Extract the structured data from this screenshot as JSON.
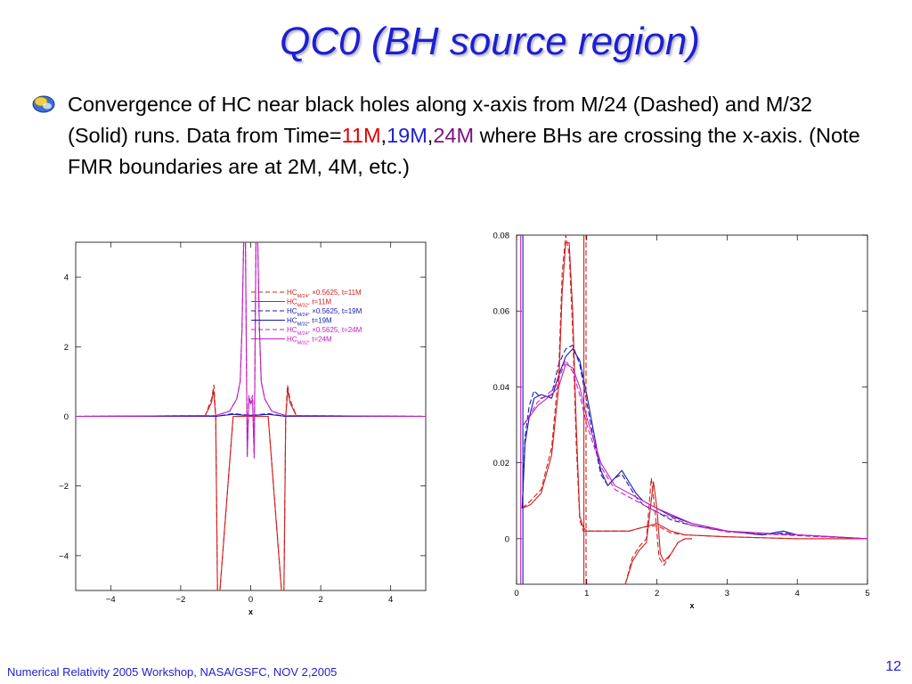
{
  "slide": {
    "title": "QC0 (BH source region)",
    "bullet": {
      "part1": "Convergence of HC near black holes along x-axis from M/24 (Dashed) and M/32 (Solid) runs. Data from Time=",
      "t11": "11M",
      "sep1": ",",
      "t19": "19M",
      "sep2": ",",
      "t24": "24M",
      "part2": " where BHs are crossing the x-axis. (Note FMR boundaries are at 2M, 4M, etc.)"
    },
    "footer": "Numerical Relativity 2005 Workshop, NASA/GSFC, NOV 2,2005",
    "page_number": "12",
    "colors": {
      "title": "#1f1fd0",
      "t11": "#e00000",
      "t19": "#2020d0",
      "t24": "#7a1080"
    }
  },
  "chart_data": [
    {
      "type": "line",
      "xlabel": "x",
      "xlim": [
        -5,
        5
      ],
      "ylim": [
        -5,
        5
      ],
      "xticks": [
        -4,
        -2,
        0,
        2,
        4
      ],
      "xtick_labels": [
        "−4",
        "−2",
        "0",
        "2",
        "4"
      ],
      "yticks": [
        -4,
        -2,
        0,
        2,
        4
      ],
      "ytick_labels": [
        "−4",
        "−2",
        "0",
        "2",
        "4"
      ],
      "legend_position": "top-right",
      "legend": [
        {
          "hc": "HC",
          "sub": "M/24",
          "suffix": ", ×0.5625,  t=11M",
          "color": "#d02020",
          "dashed": true
        },
        {
          "hc": "HC",
          "sub": "M/32",
          "suffix": ",  t=11M",
          "color": "#d02020",
          "dashed": false
        },
        {
          "hc": "HC",
          "sub": "M/24",
          "suffix": ", ×0.5625,  t=19M",
          "color": "#1818b0",
          "dashed": true
        },
        {
          "hc": "HC",
          "sub": "M/32",
          "suffix": ",  t=19M",
          "color": "#1818b0",
          "dashed": false
        },
        {
          "hc": "HC",
          "sub": "M/24",
          "suffix": ", ×0.5625,  t=24M",
          "color": "#c020c0",
          "dashed": true
        },
        {
          "hc": "HC",
          "sub": "M/32",
          "suffix": ",  t=24M",
          "color": "#c020c0",
          "dashed": false
        }
      ],
      "series": [
        {
          "color": "#d02020",
          "dashed": true,
          "x": [
            -5,
            -1.3,
            -1.12,
            -1.05,
            -1.0,
            -0.95,
            -0.88,
            -0.5,
            0.5,
            0.88,
            0.95,
            1.0,
            1.05,
            1.12,
            1.3,
            5
          ],
          "y": [
            0,
            0.02,
            0.5,
            0.9,
            0,
            -5,
            -5,
            0,
            0,
            -5,
            -5,
            0,
            0.9,
            0.5,
            0.02,
            0
          ]
        },
        {
          "color": "#d02020",
          "dashed": false,
          "x": [
            -5,
            -1.3,
            -1.12,
            -1.06,
            -1.0,
            -0.95,
            -0.88,
            -0.5,
            0.5,
            0.88,
            0.95,
            1.0,
            1.06,
            1.12,
            1.3,
            5
          ],
          "y": [
            0,
            0.02,
            0.4,
            0.75,
            0,
            -5,
            -5,
            0,
            0,
            -5,
            -5,
            0,
            0.75,
            0.4,
            0.02,
            0
          ]
        },
        {
          "color": "#1818b0",
          "dashed": true,
          "x": [
            -5,
            -1.0,
            -0.5,
            -0.15,
            0.15,
            0.5,
            1.0,
            5
          ],
          "y": [
            0,
            0.0,
            0.08,
            0.04,
            0.04,
            0.08,
            0.0,
            0
          ]
        },
        {
          "color": "#1818b0",
          "dashed": false,
          "x": [
            -5,
            -1.0,
            -0.5,
            -0.15,
            0.15,
            0.5,
            1.0,
            5
          ],
          "y": [
            0,
            0.0,
            0.06,
            0.03,
            0.03,
            0.06,
            0.0,
            0
          ]
        },
        {
          "color": "#c020c0",
          "dashed": true,
          "x": [
            -5,
            -1.0,
            -0.6,
            -0.4,
            -0.3,
            -0.25,
            -0.2,
            -0.15,
            -0.1,
            -0.05,
            0,
            0.05,
            0.1,
            0.15,
            0.2,
            0.25,
            0.3,
            0.4,
            0.6,
            1.0,
            5
          ],
          "y": [
            0,
            0.02,
            0.15,
            0.5,
            1.0,
            2.5,
            5,
            5,
            -1.2,
            0.6,
            0.4,
            0.6,
            -1.2,
            5,
            5,
            2.5,
            1.0,
            0.5,
            0.15,
            0.02,
            0
          ]
        },
        {
          "color": "#c020c0",
          "dashed": false,
          "x": [
            -5,
            -1.0,
            -0.6,
            -0.4,
            -0.3,
            -0.25,
            -0.2,
            -0.15,
            -0.1,
            -0.05,
            0,
            0.05,
            0.1,
            0.15,
            0.2,
            0.25,
            0.3,
            0.4,
            0.6,
            1.0,
            5
          ],
          "y": [
            0,
            0.02,
            0.15,
            0.5,
            1.0,
            2.5,
            5,
            5,
            -1.1,
            0.5,
            0.35,
            0.5,
            -1.1,
            5,
            5,
            2.5,
            1.0,
            0.5,
            0.15,
            0.02,
            0
          ]
        }
      ]
    },
    {
      "type": "line",
      "xlabel": "x",
      "xlim": [
        0,
        5
      ],
      "ylim": [
        -0.012,
        0.08
      ],
      "xticks": [
        0,
        1,
        2,
        3,
        4,
        5
      ],
      "xtick_labels": [
        "0",
        "1",
        "2",
        "3",
        "4",
        "5"
      ],
      "yticks": [
        0,
        0.02,
        0.04,
        0.06,
        0.08
      ],
      "ytick_labels": [
        "0",
        "0.02",
        "0.04",
        "0.06",
        "0.08"
      ],
      "series": [
        {
          "color": "#1818b0",
          "dashed": false,
          "x": [
            0.08,
            0.12,
            0.18,
            0.25,
            0.35,
            0.5,
            0.6,
            0.7,
            0.8,
            0.9,
            1.0,
            1.1,
            1.2,
            1.3,
            1.4,
            1.5,
            1.6,
            1.7,
            1.8,
            2.0,
            2.2,
            2.5,
            3.0,
            3.5,
            3.8,
            4.0,
            4.5,
            5.0
          ],
          "y": [
            0.008,
            0.025,
            0.032,
            0.037,
            0.038,
            0.037,
            0.043,
            0.048,
            0.05,
            0.047,
            0.038,
            0.028,
            0.018,
            0.014,
            0.016,
            0.018,
            0.015,
            0.012,
            0.01,
            0.008,
            0.006,
            0.004,
            0.002,
            0.001,
            0.002,
            0.001,
            0.0005,
            0.0
          ]
        },
        {
          "color": "#1818b0",
          "dashed": true,
          "x": [
            0.08,
            0.12,
            0.18,
            0.25,
            0.35,
            0.5,
            0.6,
            0.7,
            0.8,
            0.9,
            1.0,
            1.1,
            1.2,
            1.3,
            1.4,
            1.5,
            1.6,
            1.7,
            1.8,
            2.0,
            2.2,
            2.5,
            3.0,
            3.5,
            3.8,
            4.0,
            4.5,
            5.0
          ],
          "y": [
            0.008,
            0.027,
            0.035,
            0.039,
            0.037,
            0.038,
            0.046,
            0.05,
            0.051,
            0.046,
            0.036,
            0.026,
            0.017,
            0.014,
            0.016,
            0.017,
            0.014,
            0.011,
            0.009,
            0.007,
            0.005,
            0.0035,
            0.002,
            0.001,
            0.0015,
            0.001,
            0.0005,
            0.0
          ]
        },
        {
          "color": "#d02020",
          "dashed": false,
          "x": [
            0.08,
            0.2,
            0.35,
            0.5,
            0.6,
            0.65,
            0.7,
            0.75,
            0.8,
            0.85,
            0.9,
            0.95,
            1.0,
            1.2,
            1.4,
            1.6,
            1.8,
            2.0,
            2.1,
            2.2,
            2.4,
            3.0,
            4.0,
            5.0
          ],
          "y": [
            0.008,
            0.009,
            0.012,
            0.022,
            0.04,
            0.065,
            0.078,
            0.078,
            0.06,
            0.03,
            0.006,
            0.003,
            0.002,
            0.002,
            0.002,
            0.002,
            0.003,
            0.004,
            0.003,
            0.002,
            0.001,
            0.0005,
            0.0,
            0.0
          ]
        },
        {
          "color": "#d02020",
          "dashed": true,
          "x": [
            0.08,
            0.2,
            0.35,
            0.5,
            0.6,
            0.65,
            0.7,
            0.75,
            0.8,
            0.85,
            0.9,
            0.95,
            1.0,
            1.2,
            1.4,
            1.6,
            1.8,
            2.0,
            2.1,
            2.2,
            2.4,
            3.0,
            4.0,
            5.0
          ],
          "y": [
            0.008,
            0.01,
            0.013,
            0.024,
            0.044,
            0.07,
            0.08,
            0.075,
            0.055,
            0.025,
            0.005,
            0.002,
            0.002,
            0.002,
            0.002,
            0.002,
            0.003,
            0.0035,
            0.0025,
            0.0015,
            0.001,
            0.0005,
            0.0,
            0.0
          ]
        },
        {
          "color": "#d02020",
          "dashed": false,
          "x": [
            1.55,
            1.65,
            1.75,
            1.85,
            1.95,
            2.0,
            2.05,
            2.1,
            2.2,
            2.3,
            2.4,
            2.5
          ],
          "y": [
            -0.012,
            -0.006,
            -0.003,
            -0.001,
            0.015,
            0.008,
            -0.004,
            -0.006,
            -0.004,
            -0.001,
            0.0,
            0.0
          ]
        },
        {
          "color": "#d02020",
          "dashed": true,
          "x": [
            1.55,
            1.65,
            1.75,
            1.85,
            1.92,
            1.98,
            2.03,
            2.1,
            2.2,
            2.3,
            2.4,
            2.5
          ],
          "y": [
            -0.012,
            -0.005,
            -0.002,
            0.0,
            0.016,
            0.006,
            -0.005,
            -0.007,
            -0.004,
            -0.001,
            0.0,
            0.0
          ]
        },
        {
          "color": "#c020c0",
          "dashed": false,
          "x": [
            0.1,
            0.3,
            0.5,
            0.6,
            0.7,
            0.8,
            0.9,
            1.0,
            1.2,
            1.4,
            1.6,
            1.8,
            2.0,
            2.5,
            3.0,
            4.0,
            5.0
          ],
          "y": [
            0.03,
            0.035,
            0.038,
            0.04,
            0.046,
            0.045,
            0.04,
            0.032,
            0.02,
            0.014,
            0.012,
            0.01,
            0.008,
            0.004,
            0.002,
            0.001,
            0.0
          ]
        },
        {
          "color": "#c020c0",
          "dashed": true,
          "x": [
            0.1,
            0.3,
            0.5,
            0.6,
            0.7,
            0.8,
            0.9,
            1.0,
            1.2,
            1.4,
            1.6,
            1.8,
            2.0,
            2.5,
            3.0,
            4.0,
            5.0
          ],
          "y": [
            0.03,
            0.036,
            0.039,
            0.042,
            0.047,
            0.044,
            0.038,
            0.03,
            0.019,
            0.013,
            0.011,
            0.009,
            0.007,
            0.0035,
            0.0018,
            0.0008,
            0.0
          ]
        },
        {
          "color": "#d02020",
          "dashed": false,
          "x": [
            0.96,
            0.96
          ],
          "y": [
            -0.012,
            0.08
          ]
        },
        {
          "color": "#d02020",
          "dashed": true,
          "x": [
            0.99,
            0.99
          ],
          "y": [
            -0.012,
            0.08
          ]
        },
        {
          "color": "#c020c0",
          "dashed": false,
          "x": [
            0.06,
            0.06
          ],
          "y": [
            -0.012,
            0.08
          ]
        },
        {
          "color": "#1818b0",
          "dashed": false,
          "x": [
            0.09,
            0.09
          ],
          "y": [
            -0.012,
            0.08
          ]
        }
      ]
    }
  ]
}
